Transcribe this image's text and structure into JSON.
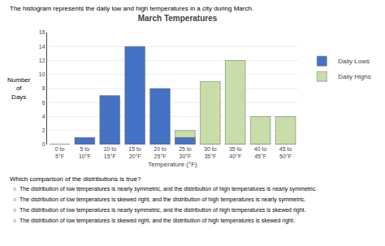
{
  "chart_data": {
    "type": "bar",
    "title": "March Temperatures",
    "xlabel": "Temperature (°F)",
    "ylabel": "Number\nof\nDays",
    "categories": [
      "0 to\n5°F",
      "5 to\n10°F",
      "10 to\n15°F",
      "15 to\n20°F",
      "20 to\n25°F",
      "25 to\n30°F",
      "30 to\n35°F",
      "35 to\n40°F",
      "40 to\n45°F",
      "45 to\n50°F"
    ],
    "series": [
      {
        "name": "Daily Highs",
        "color": "#C8DDA8",
        "values": [
          0,
          0,
          0,
          0,
          0,
          2,
          9,
          12,
          4,
          4
        ]
      },
      {
        "name": "Daily Lows",
        "color": "#4472C4",
        "values": [
          0,
          1,
          7,
          14,
          8,
          1,
          0,
          0,
          0,
          0
        ]
      }
    ],
    "ylim": [
      0,
      16
    ],
    "yticks": [
      0,
      2,
      4,
      6,
      8,
      10,
      12,
      14,
      16
    ],
    "grid": true,
    "legend": "right",
    "annotations": [
      "The histogram represents the daily low and high temperatures in a city during March.",
      "Which comparison of the distributions is true?",
      "○  The distribution of low temperatures is nearly symmetric, and the distribution of high temperatures is nearly symmetric.",
      "○  The distribution of low temperatures is skewed right, and the distribution of high temperatures is nearly symmetric.",
      "○  The distribution of low temperatures is nearly symmetric, and the distribution of high temperatures is skewed right.",
      "○  The distribution of low temperatures is skewed right, and the distribution of high temperatures is skewed right."
    ]
  }
}
